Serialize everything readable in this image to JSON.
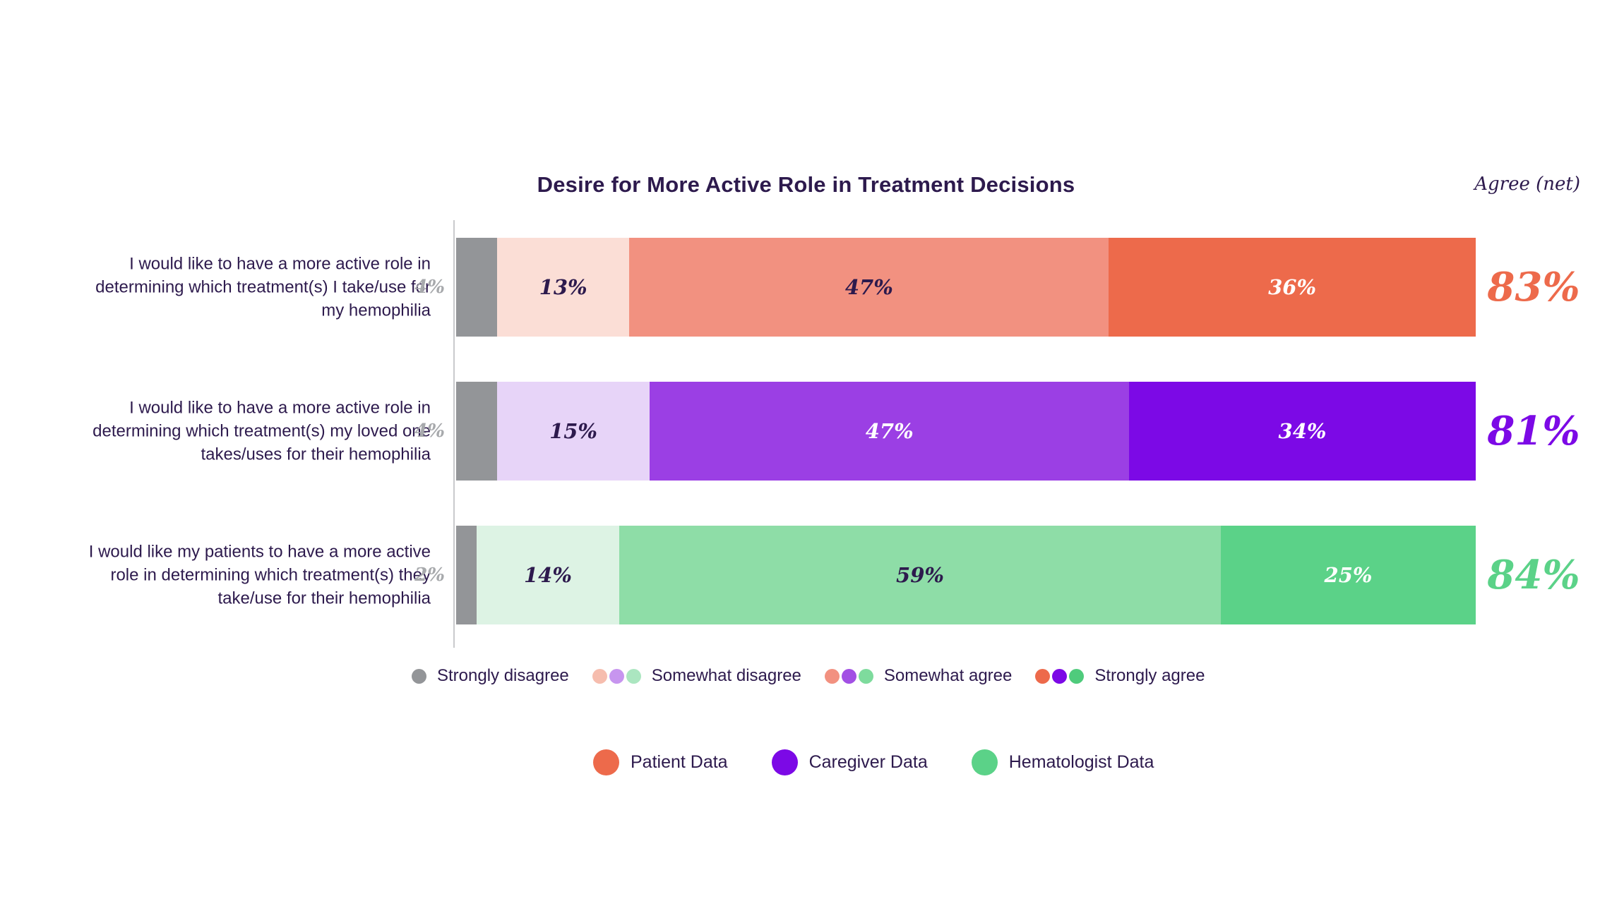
{
  "chart_data": {
    "type": "bar",
    "variant": "horizontal-stacked-100",
    "title": "Desire for More Active Role in Treatment Decisions",
    "net_header": "Agree (net)",
    "xlim": [
      0,
      100
    ],
    "grid": false,
    "colors": {
      "text_dark": "#2d1a4d",
      "axis_line": "#c9cacc",
      "outside_label_gray": "#a7a9ac",
      "strongly_disagree_gray": "#939598"
    },
    "scale_categories": [
      "Strongly disagree",
      "Somewhat disagree",
      "Somewhat agree",
      "Strongly agree"
    ],
    "rows": [
      {
        "series": "Patient Data",
        "label": "I would like to have a more active role in determining which treatment(s) I take/use for my hemophilia",
        "outside_value": "4%",
        "net": "83%",
        "net_color": "#ed6a4b",
        "segments": [
          {
            "category": "Strongly disagree",
            "value": 4,
            "label": "",
            "color": "#939598",
            "text_color": "#2d1a4d"
          },
          {
            "category": "Somewhat disagree",
            "value": 13,
            "label": "13%",
            "color": "#fbded6",
            "text_color": "#2d1a4d"
          },
          {
            "category": "Somewhat agree",
            "value": 47,
            "label": "47%",
            "color": "#f29180",
            "text_color": "#2d1a4d"
          },
          {
            "category": "Strongly agree",
            "value": 36,
            "label": "36%",
            "color": "#ed6a4b",
            "text_color": "#ffffff"
          }
        ]
      },
      {
        "series": "Caregiver Data",
        "label": "I would like to have a more active role in determining which treatment(s) my loved one takes/uses for their hemophilia",
        "outside_value": "4%",
        "net": "81%",
        "net_color": "#7c09e6",
        "segments": [
          {
            "category": "Strongly disagree",
            "value": 4,
            "label": "",
            "color": "#939598",
            "text_color": "#2d1a4d"
          },
          {
            "category": "Somewhat disagree",
            "value": 15,
            "label": "15%",
            "color": "#e7d4f8",
            "text_color": "#2d1a4d"
          },
          {
            "category": "Somewhat agree",
            "value": 47,
            "label": "47%",
            "color": "#9b3fe4",
            "text_color": "#ffffff"
          },
          {
            "category": "Strongly agree",
            "value": 34,
            "label": "34%",
            "color": "#7c09e6",
            "text_color": "#ffffff"
          }
        ]
      },
      {
        "series": "Hematologist Data",
        "label": "I would like my patients to have a more active role in determining which treatment(s) they take/use for their hemophilia",
        "outside_value": "2%",
        "net": "84%",
        "net_color": "#5bd288",
        "segments": [
          {
            "category": "Strongly disagree",
            "value": 2,
            "label": "",
            "color": "#939598",
            "text_color": "#2d1a4d"
          },
          {
            "category": "Somewhat disagree",
            "value": 14,
            "label": "14%",
            "color": "#ddf3e4",
            "text_color": "#2d1a4d"
          },
          {
            "category": "Somewhat agree",
            "value": 59,
            "label": "59%",
            "color": "#8edda7",
            "text_color": "#2d1a4d"
          },
          {
            "category": "Strongly agree",
            "value": 25,
            "label": "25%",
            "color": "#5bd288",
            "text_color": "#ffffff"
          }
        ]
      }
    ],
    "legend_scale": [
      {
        "label": "Strongly disagree",
        "dots": [
          "#939598"
        ]
      },
      {
        "label": "Somewhat disagree",
        "dots": [
          "#f6bdae",
          "#c795ef",
          "#abe6c0"
        ]
      },
      {
        "label": "Somewhat agree",
        "dots": [
          "#f29180",
          "#a250e4",
          "#7edb9d"
        ]
      },
      {
        "label": "Strongly agree",
        "dots": [
          "#ed6a4b",
          "#7c09e6",
          "#4fcb7c"
        ]
      }
    ],
    "legend_series": [
      {
        "label": "Patient Data",
        "color": "#ed6a4b"
      },
      {
        "label": "Caregiver Data",
        "color": "#7c09e6"
      },
      {
        "label": "Hematologist Data",
        "color": "#5bd288"
      }
    ]
  }
}
